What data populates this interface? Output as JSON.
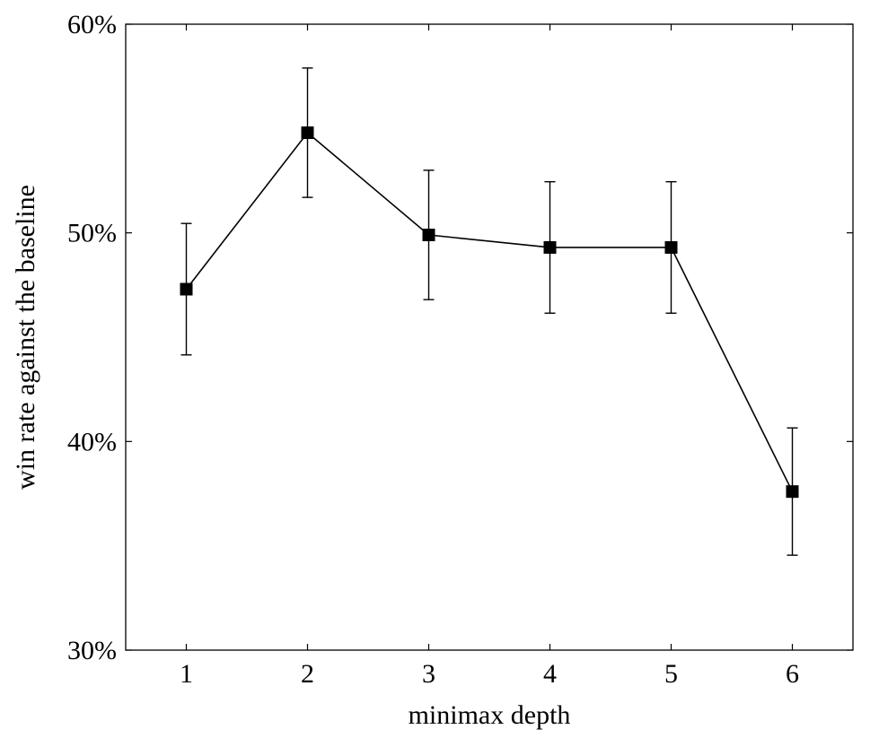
{
  "chart_data": {
    "type": "line",
    "title": "",
    "xlabel": "minimax depth",
    "ylabel": "win rate against the baseline",
    "x": [
      1,
      2,
      3,
      4,
      5,
      6
    ],
    "xlim": [
      0.5,
      6.5
    ],
    "ylim": [
      30,
      60
    ],
    "yticks": [
      30,
      40,
      50,
      60
    ],
    "ytick_labels": [
      "30%",
      "40%",
      "50%",
      "60%"
    ],
    "xtick_labels": [
      "1",
      "2",
      "3",
      "4",
      "5",
      "6"
    ],
    "grid": false,
    "series": [
      {
        "name": "win rate",
        "marker": "square",
        "color": "#000000",
        "values": [
          47.3,
          54.8,
          49.9,
          49.3,
          49.3,
          37.6
        ],
        "error": [
          3.15,
          3.1,
          3.1,
          3.15,
          3.15,
          3.05
        ]
      }
    ]
  }
}
